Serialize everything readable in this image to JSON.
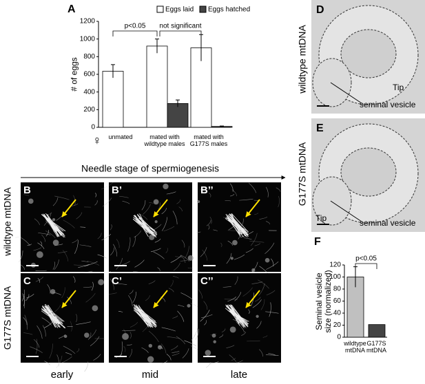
{
  "panel_labels": {
    "A": "A",
    "B": "B",
    "B1": "B’",
    "B2": "B’’",
    "C": "C",
    "C1": "C’",
    "C2": "C’’",
    "D": "D",
    "E": "E",
    "F": "F"
  },
  "rows": [
    "wildtype mtDNA",
    "G177S mtDNA"
  ],
  "columns": [
    "early",
    "mid",
    "late"
  ],
  "stage_axis": "Needle stage of spermiogenesis",
  "female_symbol": "♀",
  "images": {
    "D": {
      "genotype": "wildtype mtDNA",
      "tip": "Tip",
      "vesicle": "seminal vesicle"
    },
    "E": {
      "genotype": "G177S mtDNA",
      "tip": "Tip",
      "vesicle": "seminal vesicle"
    }
  },
  "chart_data": [
    {
      "type": "bar",
      "ylabel": "# of eggs",
      "categories": [
        "unmated",
        "mated with\nwildtype males",
        "mated with\nG177S males"
      ],
      "series": [
        {
          "name": "Eggs laid",
          "color": "#ffffff",
          "values": [
            635,
            920,
            900
          ],
          "errors": [
            75,
            80,
            150
          ]
        },
        {
          "name": "Eggs hatched",
          "color": "#444444",
          "values": [
            0,
            270,
            10
          ],
          "errors": [
            0,
            40,
            5
          ]
        }
      ],
      "ylim": [
        0,
        1200
      ],
      "yticks": [
        0,
        200,
        400,
        600,
        800,
        1000,
        1200
      ],
      "annotations": [
        "p<0.05",
        "not significant"
      ]
    },
    {
      "type": "bar",
      "ylabel": "Seminal vesicle\nsize (normalized)",
      "categories": [
        "wildtype\nmtDNA",
        "G177S\nmtDNA"
      ],
      "values": [
        100,
        21
      ],
      "errors": [
        17,
        0
      ],
      "colors": [
        "#c0c0c0",
        "#444444"
      ],
      "ylim": [
        0,
        120
      ],
      "yticks": [
        0,
        20,
        40,
        60,
        80,
        100,
        120
      ],
      "annotations": [
        "p<0.05"
      ]
    }
  ]
}
